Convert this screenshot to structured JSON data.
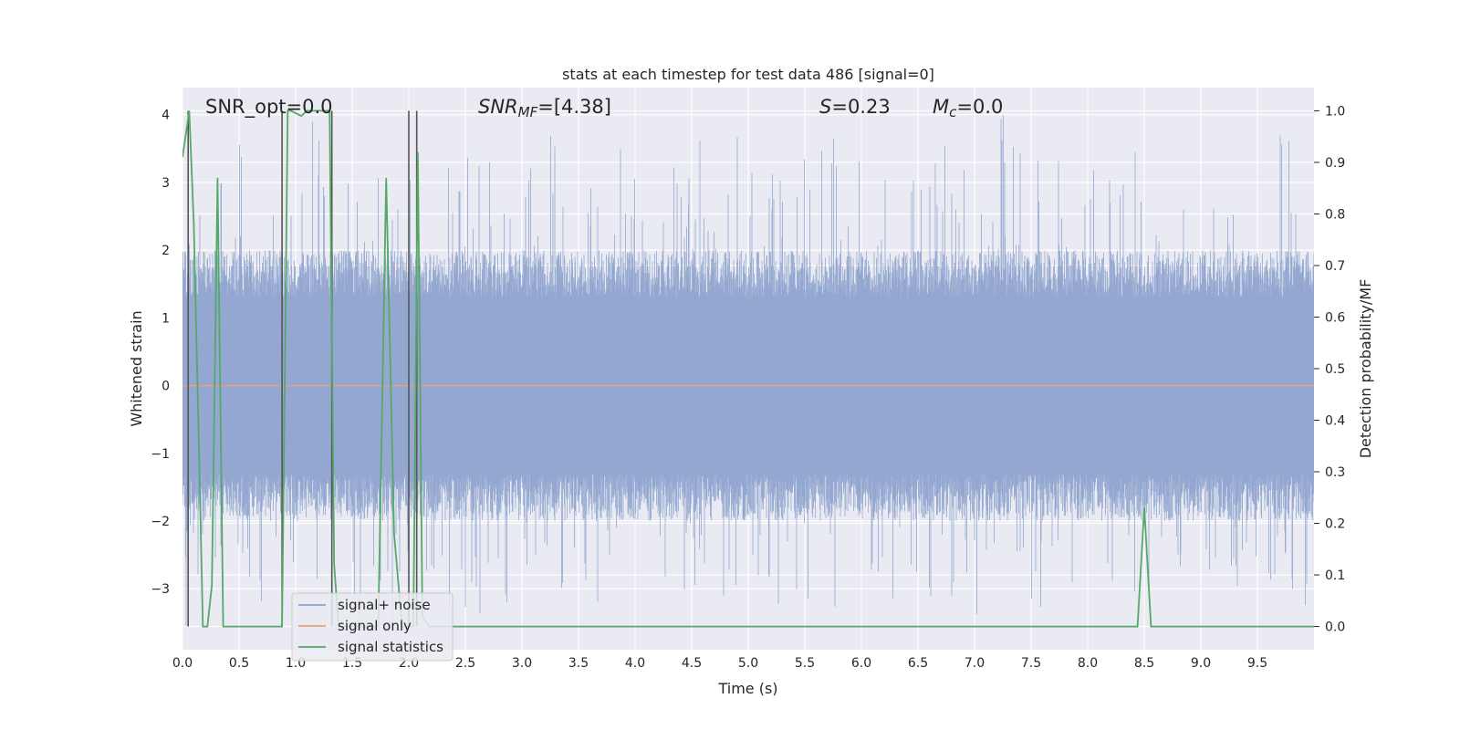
{
  "chart_data": {
    "type": "line",
    "title": "stats at each timestep for test data 486 [signal=0]",
    "xlabel": "Time (s)",
    "ylabel": "Whitened strain",
    "ylabel_right": "Detection probability/MF",
    "xlim": [
      0.0,
      10.0
    ],
    "ylim": [
      -3.9,
      4.4
    ],
    "ylim_right": [
      -0.045,
      1.045
    ],
    "xticks": [
      "0.0",
      "0.5",
      "1.0",
      "1.5",
      "2.0",
      "2.5",
      "3.0",
      "3.5",
      "4.0",
      "4.5",
      "5.0",
      "5.5",
      "6.0",
      "6.5",
      "7.0",
      "7.5",
      "8.0",
      "8.5",
      "9.0",
      "9.5"
    ],
    "yticks": [
      "4",
      "3",
      "2",
      "1",
      "0",
      "−1",
      "−2",
      "−3"
    ],
    "yticks_right": [
      "1.0",
      "0.9",
      "0.8",
      "0.7",
      "0.6",
      "0.5",
      "0.4",
      "0.3",
      "0.2",
      "0.1",
      "0.0"
    ],
    "annotations": {
      "snr_opt": "SNR_opt=0.0",
      "snr_mf_base": "SNR",
      "snr_mf_sub": "MF",
      "snr_mf_value": "=[4.38]",
      "s_symbol": "S",
      "s_value": "=0.23",
      "mc_base": "M",
      "mc_sub": "c",
      "mc_value": "=0.0"
    },
    "grid": true,
    "legend_placement": "lower-left",
    "series": [
      {
        "name": "signal+ noise",
        "color": "#8ea3cf",
        "kind": "noise_band",
        "approx_envelope_abs": 2.0,
        "approx_peak_max": 4.0,
        "approx_peak_min": -3.6
      },
      {
        "name": "signal only",
        "color": "#e8a07e",
        "x": [
          0.0,
          10.0
        ],
        "y": [
          0.0,
          0.0
        ]
      },
      {
        "name": "signal statistics",
        "color": "#55a868",
        "axis": "right",
        "x": [
          0.0,
          0.06,
          0.1,
          0.15,
          0.18,
          0.22,
          0.26,
          0.31,
          0.36,
          0.4,
          0.88,
          0.93,
          0.96,
          1.05,
          1.1,
          1.2,
          1.3,
          1.34,
          1.38,
          1.48,
          1.6,
          1.73,
          1.8,
          1.87,
          1.94,
          2.04,
          2.08,
          2.12,
          2.18,
          2.3,
          3.0,
          4.0,
          5.0,
          6.0,
          7.0,
          8.0,
          8.44,
          8.5,
          8.56,
          9.0,
          10.0
        ],
        "y": [
          0.91,
          1.0,
          0.78,
          0.3,
          0.0,
          0.0,
          0.08,
          0.87,
          0.0,
          0.0,
          0.0,
          1.0,
          1.0,
          0.99,
          1.0,
          1.0,
          1.0,
          0.12,
          0.0,
          0.0,
          0.0,
          0.0,
          0.87,
          0.18,
          0.0,
          0.0,
          0.92,
          0.02,
          0.0,
          0.0,
          0.0,
          0.0,
          0.0,
          0.0,
          0.0,
          0.0,
          0.0,
          0.23,
          0.0,
          0.0,
          0.0
        ]
      }
    ],
    "vertical_markers": {
      "color": "#555555",
      "x": [
        0.05,
        0.88,
        1.32,
        2.0,
        2.07
      ]
    }
  }
}
